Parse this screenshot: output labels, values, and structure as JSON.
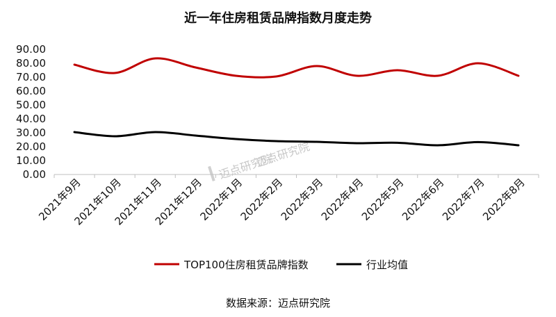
{
  "chart_data": {
    "type": "line",
    "title": "近一年住房租赁品牌指数月度走势",
    "categories": [
      "2021年9月",
      "2021年10月",
      "2021年11月",
      "2021年12月",
      "2022年1月",
      "2022年2月",
      "2022年3月",
      "2022年4月",
      "2022年5月",
      "2022年6月",
      "2022年7月",
      "2022年8月"
    ],
    "series": [
      {
        "name": "TOP100住房租赁品牌指数",
        "color": "#c00000",
        "values": [
          79.0,
          73.0,
          83.5,
          77.0,
          71.0,
          70.5,
          78.0,
          71.0,
          75.0,
          71.0,
          80.0,
          71.0
        ]
      },
      {
        "name": "行业均值",
        "color": "#000000",
        "values": [
          30.5,
          27.5,
          30.5,
          28.0,
          25.5,
          24.0,
          23.5,
          22.5,
          22.8,
          21.0,
          23.3,
          21.0
        ]
      }
    ],
    "ylim": [
      0,
      90
    ],
    "yticks": [
      "0.00",
      "10.00",
      "20.00",
      "30.00",
      "40.00",
      "50.00",
      "60.00",
      "70.00",
      "80.00",
      "90.00"
    ],
    "xlabel": "",
    "ylabel": "",
    "grid": false,
    "legend_position": "bottom"
  },
  "source_note": "数据来源：迈点研究院",
  "watermark": {
    "brand": "迈点研究院",
    "small": "迈点研究院"
  }
}
